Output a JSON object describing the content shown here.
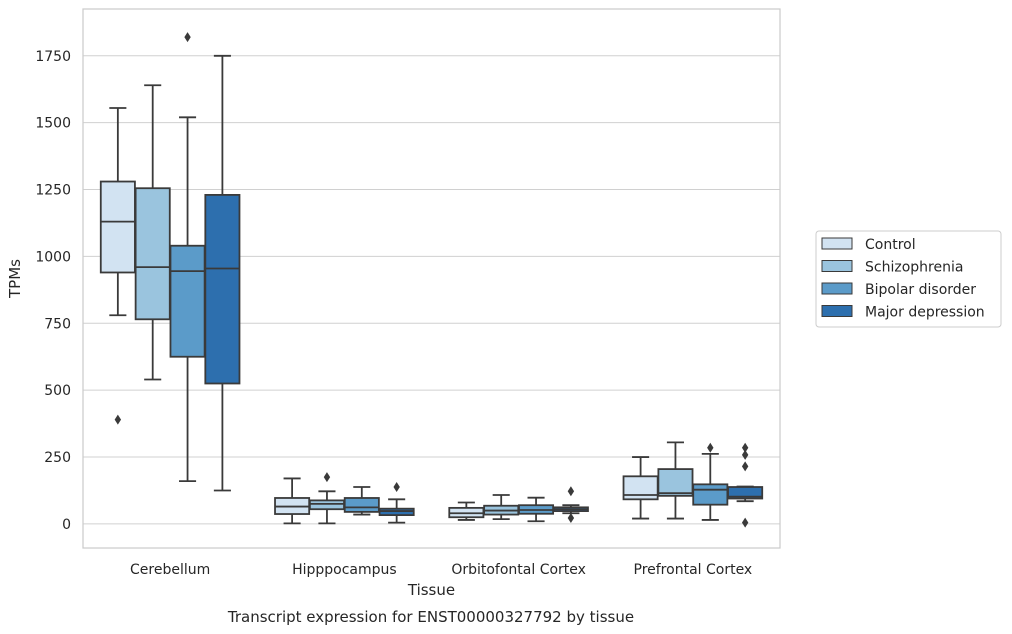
{
  "chart_data": {
    "type": "box",
    "title": "",
    "caption": "Transcript expression for ENST00000327792 by tissue",
    "xlabel": "Tissue",
    "ylabel": "TPMs",
    "ylim": [
      -90,
      1925
    ],
    "yticks": [
      0,
      250,
      500,
      750,
      1000,
      1250,
      1500,
      1750
    ],
    "grid": "horizontal",
    "legend_placement": "right",
    "categories": [
      "Cerebellum",
      "Hipppocampus",
      "Orbitofontal Cortex",
      "Prefrontal Cortex"
    ],
    "series": [
      {
        "name": "Control",
        "color": "#d2e3f2",
        "boxes": [
          {
            "whislo": 780,
            "q1": 940,
            "med": 1130,
            "q3": 1280,
            "whishi": 1555,
            "fliers": [
              390
            ]
          },
          {
            "whislo": 2,
            "q1": 37,
            "med": 65,
            "q3": 97,
            "whishi": 170,
            "fliers": []
          },
          {
            "whislo": 15,
            "q1": 25,
            "med": 40,
            "q3": 60,
            "whishi": 80,
            "fliers": []
          },
          {
            "whislo": 20,
            "q1": 92,
            "med": 108,
            "q3": 178,
            "whishi": 250,
            "fliers": []
          }
        ]
      },
      {
        "name": "Schizophrenia",
        "color": "#9ac4de",
        "boxes": [
          {
            "whislo": 540,
            "q1": 765,
            "med": 960,
            "q3": 1255,
            "whishi": 1640,
            "fliers": []
          },
          {
            "whislo": 2,
            "q1": 55,
            "med": 75,
            "q3": 88,
            "whishi": 122,
            "fliers": [
              175
            ]
          },
          {
            "whislo": 18,
            "q1": 35,
            "med": 50,
            "q3": 68,
            "whishi": 108,
            "fliers": []
          },
          {
            "whislo": 20,
            "q1": 105,
            "med": 115,
            "q3": 205,
            "whishi": 305,
            "fliers": []
          }
        ]
      },
      {
        "name": "Bipolar disorder",
        "color": "#5b9bc9",
        "boxes": [
          {
            "whislo": 160,
            "q1": 625,
            "med": 945,
            "q3": 1040,
            "whishi": 1520,
            "fliers": [
              1820
            ]
          },
          {
            "whislo": 35,
            "q1": 45,
            "med": 62,
            "q3": 97,
            "whishi": 138,
            "fliers": []
          },
          {
            "whislo": 10,
            "q1": 38,
            "med": 52,
            "q3": 70,
            "whishi": 98,
            "fliers": []
          },
          {
            "whislo": 15,
            "q1": 72,
            "med": 128,
            "q3": 148,
            "whishi": 262,
            "fliers": [
              285
            ]
          }
        ]
      },
      {
        "name": "Major depression",
        "color": "#2d6fae",
        "boxes": [
          {
            "whislo": 125,
            "q1": 525,
            "med": 955,
            "q3": 1230,
            "whishi": 1750,
            "fliers": []
          },
          {
            "whislo": 5,
            "q1": 33,
            "med": 48,
            "q3": 57,
            "whishi": 92,
            "fliers": [
              138
            ]
          },
          {
            "whislo": 40,
            "q1": 48,
            "med": 55,
            "q3": 62,
            "whishi": 70,
            "fliers": [
              122,
              22
            ]
          },
          {
            "whislo": 85,
            "q1": 95,
            "med": 102,
            "q3": 138,
            "whishi": 140,
            "fliers": [
              285,
              258,
              215,
              5
            ]
          }
        ]
      }
    ]
  }
}
